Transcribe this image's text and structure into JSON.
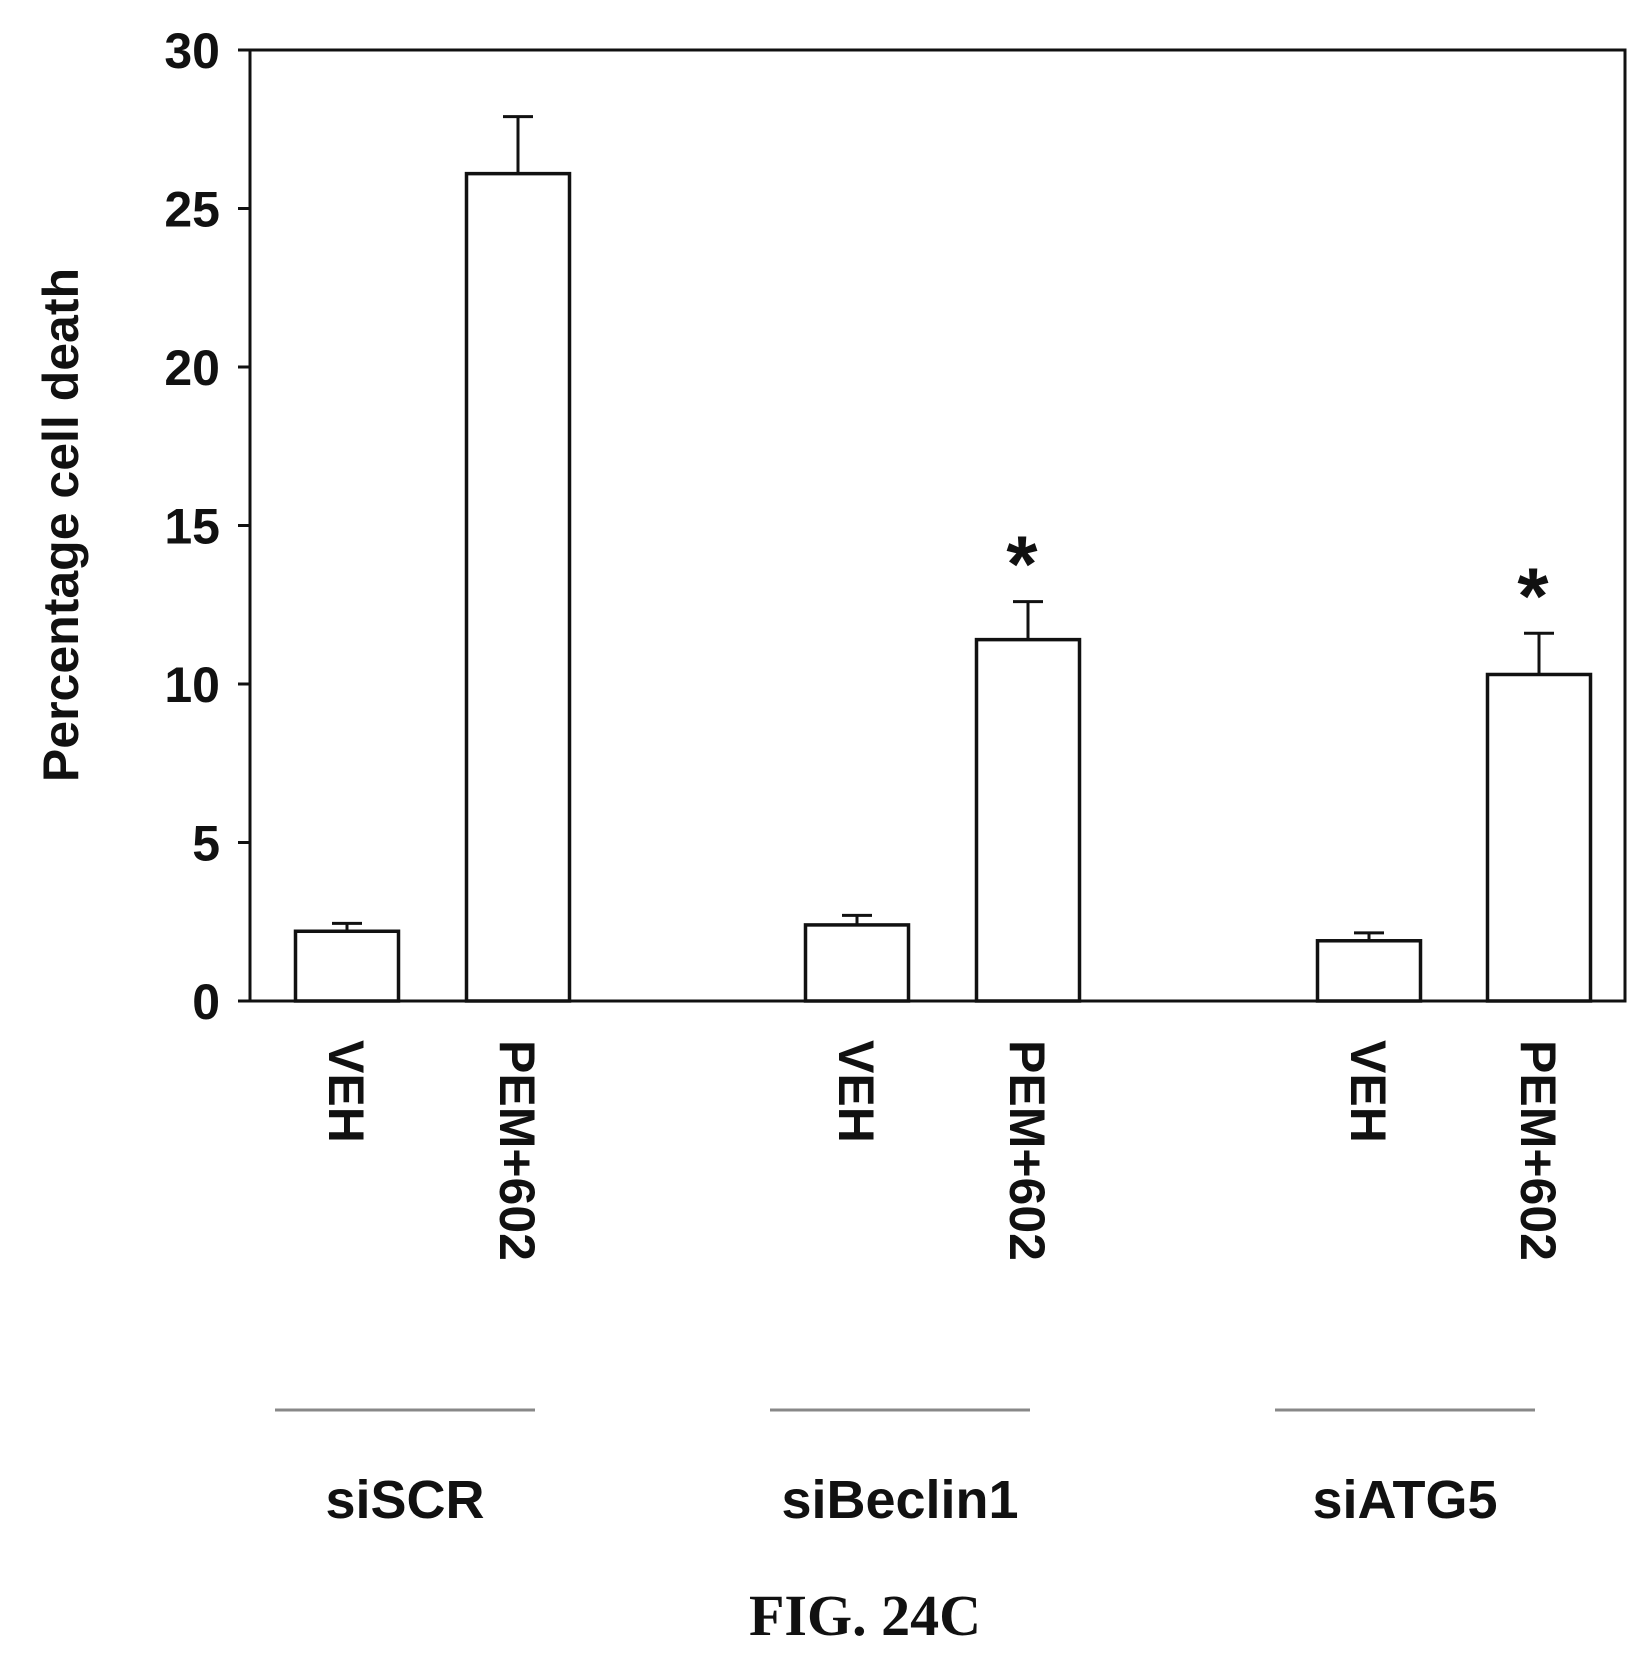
{
  "chart_data": {
    "type": "bar",
    "title": "",
    "xlabel": "",
    "ylabel": "Percentage cell death",
    "ylim": [
      0,
      30
    ],
    "yticks": [
      0,
      5,
      10,
      15,
      20,
      25,
      30
    ],
    "grid": false,
    "categories": [
      "VEH",
      "PEM+602",
      "VEH",
      "PEM+602",
      "VEH",
      "PEM+602"
    ],
    "groups": [
      "siSCR",
      "siBeclin1",
      "siATG5"
    ],
    "values": [
      2.2,
      26.1,
      2.4,
      11.4,
      1.9,
      10.3
    ],
    "errors": [
      0.25,
      1.8,
      0.3,
      1.2,
      0.25,
      1.3
    ],
    "annotations": [
      "",
      "",
      "",
      "*",
      "",
      "*"
    ],
    "bar_color": "#ffffff",
    "edge_color": "#111111"
  },
  "caption": "FIG. 24C"
}
